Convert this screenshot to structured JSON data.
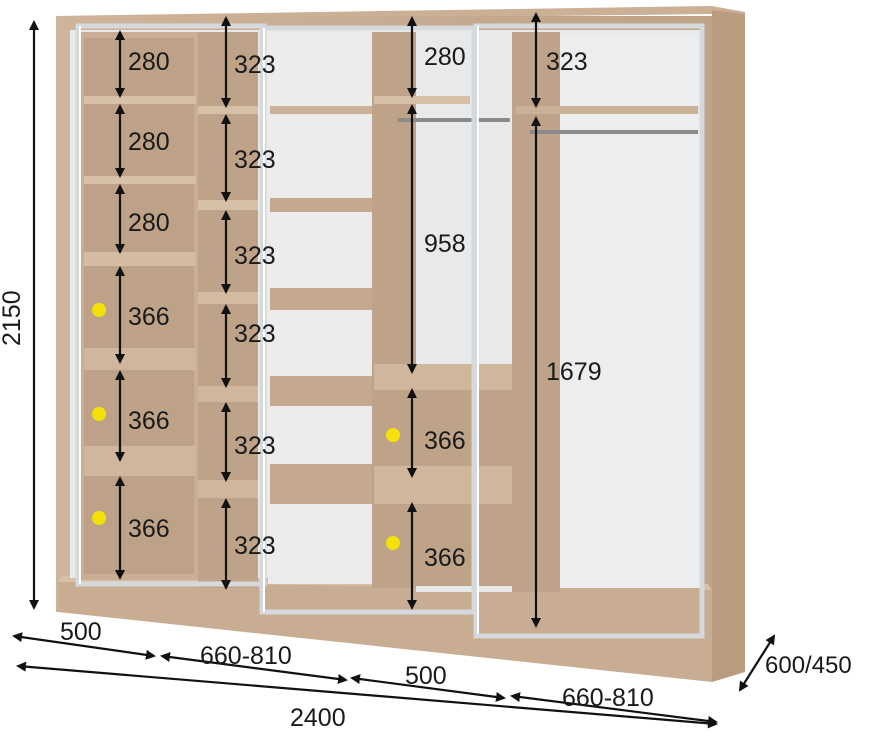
{
  "dimensions": {
    "total_height": "2150",
    "total_width": "2400",
    "depth": "600/450",
    "bottom_widths": [
      "500",
      "660-810",
      "500",
      "660-810"
    ],
    "col1_heights": [
      "280",
      "280",
      "280",
      "366",
      "366",
      "366"
    ],
    "col2_heights": [
      "323",
      "323",
      "323",
      "323",
      "323",
      "323"
    ],
    "col3_heights": [
      "280",
      "958",
      "366",
      "366"
    ],
    "col4_heights": [
      "323",
      "1679"
    ]
  },
  "colors": {
    "wood": "#c7ad92",
    "wood_dark": "#a98c70",
    "shelf_edge": "#b49a7e",
    "frame": "#d9dcde",
    "marker": "#f5e10a",
    "arrow": "#111111"
  }
}
